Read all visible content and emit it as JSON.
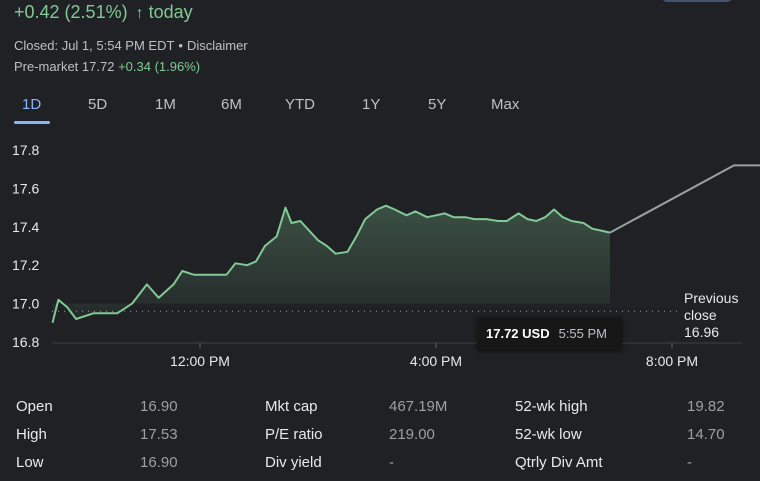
{
  "header": {
    "change_text": "+0.42 (2.51%)",
    "arrow": "↑",
    "today_label": "today",
    "closed_text": "Closed: Jul 1, 5:54 PM EDT",
    "dot": "•",
    "disclaimer": "Disclaimer",
    "premarket_label": "Pre-market 17.72",
    "premarket_change": "+0.34 (1.96%)"
  },
  "tabs": [
    "1D",
    "5D",
    "1M",
    "6M",
    "YTD",
    "1Y",
    "5Y",
    "Max"
  ],
  "active_tab": "1D",
  "tooltip": {
    "price": "17.72 USD",
    "time": "5:55 PM"
  },
  "previous_close": {
    "label_line1": "Previous",
    "label_line2": "close",
    "value": "16.96"
  },
  "chart_data": {
    "type": "line",
    "y_ticks": [
      "17.8",
      "17.6",
      "17.4",
      "17.2",
      "17.0",
      "16.8"
    ],
    "x_ticks": [
      "12:00 PM",
      "4:00 PM",
      "8:00 PM"
    ],
    "ylim": [
      16.8,
      17.8
    ],
    "previous_close": 16.96,
    "regular_session": [
      {
        "t": 9.5,
        "y": 16.9
      },
      {
        "t": 9.6,
        "y": 17.02
      },
      {
        "t": 9.75,
        "y": 16.98
      },
      {
        "t": 9.9,
        "y": 16.92
      },
      {
        "t": 10.2,
        "y": 16.95
      },
      {
        "t": 10.6,
        "y": 16.95
      },
      {
        "t": 10.85,
        "y": 17.0
      },
      {
        "t": 11.1,
        "y": 17.1
      },
      {
        "t": 11.3,
        "y": 17.03
      },
      {
        "t": 11.55,
        "y": 17.1
      },
      {
        "t": 11.7,
        "y": 17.17
      },
      {
        "t": 11.9,
        "y": 17.15
      },
      {
        "t": 12.15,
        "y": 17.15
      },
      {
        "t": 12.45,
        "y": 17.15
      },
      {
        "t": 12.6,
        "y": 17.21
      },
      {
        "t": 12.8,
        "y": 17.2
      },
      {
        "t": 12.95,
        "y": 17.22
      },
      {
        "t": 13.1,
        "y": 17.3
      },
      {
        "t": 13.3,
        "y": 17.35
      },
      {
        "t": 13.45,
        "y": 17.5
      },
      {
        "t": 13.55,
        "y": 17.42
      },
      {
        "t": 13.7,
        "y": 17.43
      },
      {
        "t": 13.85,
        "y": 17.38
      },
      {
        "t": 14.0,
        "y": 17.33
      },
      {
        "t": 14.15,
        "y": 17.3
      },
      {
        "t": 14.3,
        "y": 17.26
      },
      {
        "t": 14.5,
        "y": 17.27
      },
      {
        "t": 14.65,
        "y": 17.35
      },
      {
        "t": 14.8,
        "y": 17.44
      },
      {
        "t": 15.0,
        "y": 17.49
      },
      {
        "t": 15.15,
        "y": 17.51
      },
      {
        "t": 15.3,
        "y": 17.49
      },
      {
        "t": 15.5,
        "y": 17.46
      },
      {
        "t": 15.65,
        "y": 17.48
      },
      {
        "t": 15.85,
        "y": 17.45
      },
      {
        "t": 16.0,
        "y": 17.46
      },
      {
        "t": 16.15,
        "y": 17.47
      },
      {
        "t": 16.3,
        "y": 17.45
      },
      {
        "t": 16.5,
        "y": 17.45
      },
      {
        "t": 16.65,
        "y": 17.44
      },
      {
        "t": 16.85,
        "y": 17.44
      },
      {
        "t": 17.05,
        "y": 17.43
      },
      {
        "t": 17.2,
        "y": 17.43
      },
      {
        "t": 17.4,
        "y": 17.47
      },
      {
        "t": 17.55,
        "y": 17.44
      },
      {
        "t": 17.7,
        "y": 17.43
      },
      {
        "t": 17.85,
        "y": 17.45
      },
      {
        "t": 18.0,
        "y": 17.49
      },
      {
        "t": 18.15,
        "y": 17.45
      },
      {
        "t": 18.3,
        "y": 17.43
      },
      {
        "t": 18.5,
        "y": 17.42
      },
      {
        "t": 18.65,
        "y": 17.39
      },
      {
        "t": 18.8,
        "y": 17.38
      },
      {
        "t": 18.95,
        "y": 17.37
      }
    ],
    "after_hours": [
      {
        "t": 18.95,
        "y": 17.37
      },
      {
        "t": 21.05,
        "y": 17.72
      },
      {
        "t": 21.65,
        "y": 17.72
      }
    ]
  },
  "stats": [
    {
      "col1_label": "Open",
      "col1_value": "16.90",
      "col2_label": "Mkt cap",
      "col2_value": "467.19M",
      "col3_label": "52-wk high",
      "col3_value": "19.82"
    },
    {
      "col1_label": "High",
      "col1_value": "17.53",
      "col2_label": "P/E ratio",
      "col2_value": "219.00",
      "col3_label": "52-wk low",
      "col3_value": "14.70"
    },
    {
      "col1_label": "Low",
      "col1_value": "16.90",
      "col2_label": "Div yield",
      "col2_value": "-",
      "col3_label": "Qtrly Div Amt",
      "col3_value": "-"
    }
  ],
  "colors": {
    "up_green": "#81c995",
    "accent_blue": "#8ab4f8",
    "after_hours_line": "#9aa0a6",
    "background": "#202124"
  }
}
